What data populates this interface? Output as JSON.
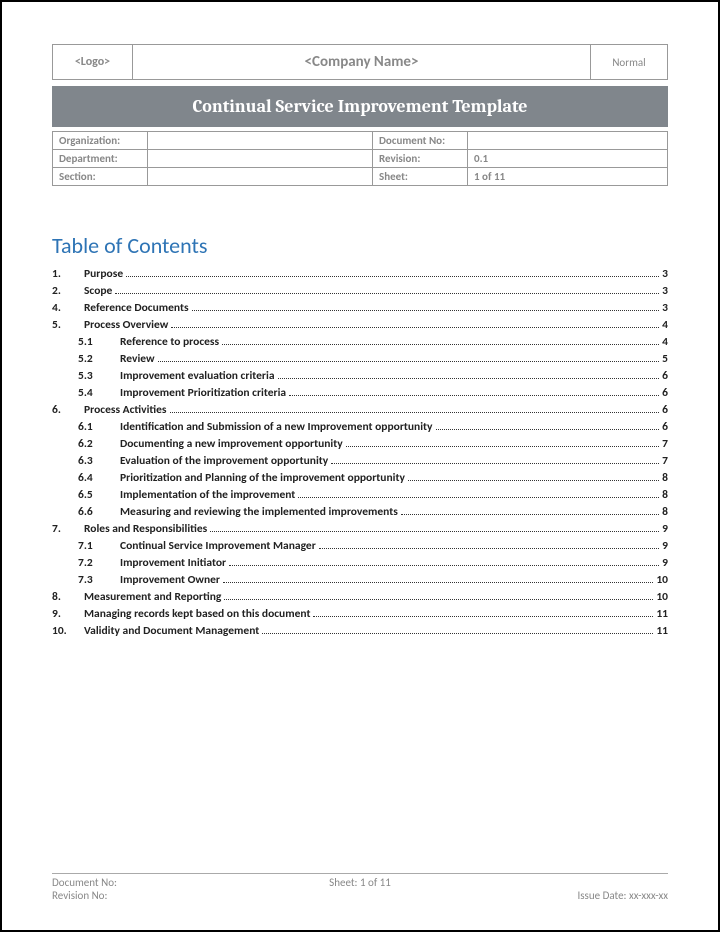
{
  "header": {
    "logo": "<Logo>",
    "company": "<Company Name>",
    "status": "Normal"
  },
  "title": "Continual Service Improvement Template",
  "meta": {
    "rows": [
      {
        "k1": "Organization:",
        "v1": "",
        "k2": "Document No:",
        "v2": ""
      },
      {
        "k1": "Department:",
        "v1": "",
        "k2": "Revision:",
        "v2": "0.1"
      },
      {
        "k1": "Section:",
        "v1": "",
        "k2": "Sheet:",
        "v2": "1 of 11"
      }
    ]
  },
  "toc_title": "Table of Contents",
  "toc": [
    {
      "level": 1,
      "num": "1.",
      "text": "Purpose",
      "page": "3"
    },
    {
      "level": 1,
      "num": "2.",
      "text": "Scope",
      "page": "3"
    },
    {
      "level": 1,
      "num": "4.",
      "text": "Reference Documents",
      "page": "3"
    },
    {
      "level": 1,
      "num": "5.",
      "text": "Process Overview",
      "page": "4"
    },
    {
      "level": 2,
      "num": "5.1",
      "text": "Reference to process",
      "page": "4"
    },
    {
      "level": 2,
      "num": "5.2",
      "text": "Review",
      "page": "5"
    },
    {
      "level": 2,
      "num": "5.3",
      "text": "Improvement evaluation criteria",
      "page": "6"
    },
    {
      "level": 2,
      "num": "5.4",
      "text": "Improvement Prioritization criteria",
      "page": "6"
    },
    {
      "level": 1,
      "num": "6.",
      "text": "Process Activities",
      "page": "6"
    },
    {
      "level": 2,
      "num": "6.1",
      "text": "Identification and Submission of a new Improvement opportunity",
      "page": "6"
    },
    {
      "level": 2,
      "num": "6.2",
      "text": "Documenting a new improvement opportunity",
      "page": "7"
    },
    {
      "level": 2,
      "num": "6.3",
      "text": "Evaluation of the improvement opportunity",
      "page": "7"
    },
    {
      "level": 2,
      "num": "6.4",
      "text": "Prioritization and Planning of the improvement opportunity",
      "page": "8"
    },
    {
      "level": 2,
      "num": "6.5",
      "text": "Implementation of the improvement",
      "page": "8"
    },
    {
      "level": 2,
      "num": "6.6",
      "text": "Measuring and reviewing the implemented improvements",
      "page": "8"
    },
    {
      "level": 1,
      "num": "7.",
      "text": "Roles and Responsibilities",
      "page": "9"
    },
    {
      "level": 2,
      "num": "7.1",
      "text": "Continual Service Improvement Manager",
      "page": "9"
    },
    {
      "level": 2,
      "num": "7.2",
      "text": "Improvement Initiator",
      "page": "9"
    },
    {
      "level": 2,
      "num": "7.3",
      "text": "Improvement Owner",
      "page": "10"
    },
    {
      "level": 1,
      "num": "8.",
      "text": "Measurement and Reporting",
      "page": "10"
    },
    {
      "level": 1,
      "num": "9.",
      "text": "Managing records kept based on this document",
      "page": "11"
    },
    {
      "level": 1,
      "num": "10.",
      "text": "Validity and Document Management",
      "page": "11"
    }
  ],
  "footer": {
    "doc_no_label": "Document No:",
    "revision_label": "Revision No:",
    "sheet_label": "Sheet: 1 of 11",
    "issue_label": "Issue Date: xx-xxx-xx"
  }
}
